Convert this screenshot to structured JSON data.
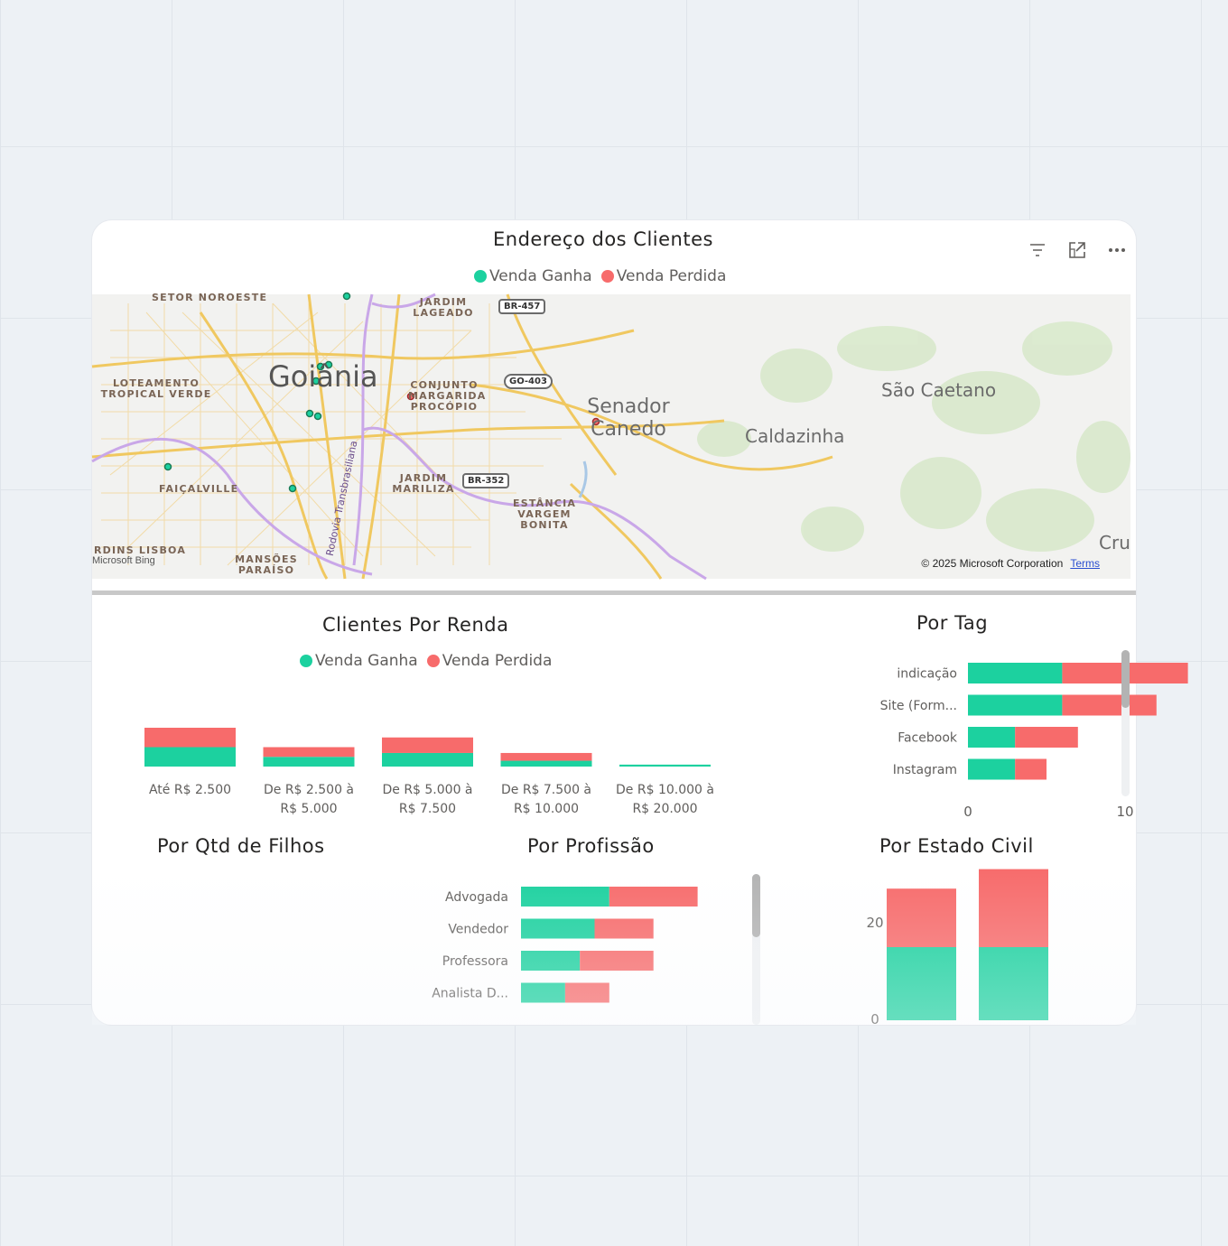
{
  "colors": {
    "ganha": "#1cd19f",
    "perdida": "#f76b6b",
    "text": "#605e5c",
    "title": "#252423"
  },
  "map_card": {
    "title": "Endereço dos Clientes",
    "legend": [
      "Venda Ganha",
      "Venda Perdida"
    ],
    "toolbar": [
      "filter-icon",
      "focus-mode-icon",
      "more-options-icon"
    ],
    "labels": {
      "setor_noroeste": "SETOR NOROESTE",
      "jardim_lageado": "JARDIM LAGEADO",
      "loteamento": "LOTEAMENTO TROPICAL VERDE",
      "conjunto": "CONJUNTO MARGARIDA PROCÓPIO",
      "faicalville": "FAIÇALVILLE",
      "jardim_mariliza": "JARDIM MARILIZA",
      "estancia": "ESTÂNCIA VARGEM BONITA",
      "rdins_lisboa": "RDINS LISBOA",
      "mansoes": "MANSÕES PARAÍSO",
      "rodovia": "Rodovia Transbrasiliana"
    },
    "cities": {
      "goiania": "Goiânia",
      "senador": "Senador Canedo",
      "caldazinha": "Caldazinha",
      "sao_caetano": "São Caetano",
      "cru": "Cru"
    },
    "shields": {
      "br457": "BR-457",
      "go403": "GO-403",
      "br352": "BR-352"
    },
    "attribution": "Microsoft Bing",
    "copyright": "© 2025 Microsoft Corporation",
    "terms": "Terms"
  },
  "renda": {
    "title": "Clientes Por Renda",
    "legend": [
      "Venda Ganha",
      "Venda Perdida"
    ],
    "chart_data": {
      "type": "bar",
      "stacked": true,
      "categories": [
        "Até R$ 2.500",
        "De R$ 2.500 à R$ 5.000",
        "De R$ 5.000 à R$ 7.500",
        "De R$ 7.500 à R$ 10.000",
        "De R$ 10.000 à R$ 20.000"
      ],
      "series": [
        {
          "name": "Venda Ganha",
          "values": [
            10,
            5,
            7,
            3,
            1
          ]
        },
        {
          "name": "Venda Perdida",
          "values": [
            10,
            5,
            8,
            4,
            0
          ]
        }
      ]
    }
  },
  "tag": {
    "title": "Por Tag",
    "chart_data": {
      "type": "bar",
      "orientation": "horizontal",
      "stacked": true,
      "categories": [
        "indicação",
        "Site (Form...",
        "Facebook",
        "Instagram"
      ],
      "series": [
        {
          "name": "Venda Ganha",
          "values": [
            6,
            6,
            3,
            3
          ]
        },
        {
          "name": "Venda Perdida",
          "values": [
            8,
            6,
            4,
            2
          ]
        }
      ],
      "xticks": [
        "0",
        "10"
      ],
      "xlim": [
        0,
        14
      ]
    }
  },
  "filhos": {
    "title": "Por Qtd de Filhos"
  },
  "profissao": {
    "title": "Por Profissão",
    "chart_data": {
      "type": "bar",
      "orientation": "horizontal",
      "stacked": true,
      "categories": [
        "Advogada",
        "Vendedor",
        "Professora",
        "Analista D..."
      ],
      "series": [
        {
          "name": "Venda Ganha",
          "values": [
            6,
            5,
            4,
            3
          ]
        },
        {
          "name": "Venda Perdida",
          "values": [
            6,
            4,
            5,
            3
          ]
        }
      ],
      "xlim": [
        0,
        12
      ]
    }
  },
  "estado_civil": {
    "title": "Por Estado Civil",
    "chart_data": {
      "type": "bar",
      "stacked": true,
      "categories": [
        "",
        ""
      ],
      "series": [
        {
          "name": "Venda Ganha",
          "values": [
            15,
            15
          ]
        },
        {
          "name": "Venda Perdida",
          "values": [
            12,
            16
          ]
        }
      ],
      "yticks": [
        "20",
        "0"
      ],
      "ylim": [
        0,
        30
      ]
    }
  }
}
